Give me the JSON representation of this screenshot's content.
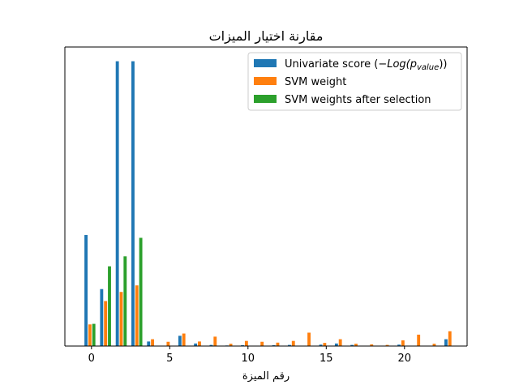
{
  "chart_data": {
    "type": "bar",
    "title": "مقارنة اختيار الميزات",
    "xlabel": "رقم الميزة",
    "ylabel": "",
    "xlim": [
      -1.7,
      24.0
    ],
    "ylim": [
      0,
      1.05
    ],
    "xticks": [
      0,
      5,
      10,
      15,
      20
    ],
    "xtick_labels": [
      "0",
      "5",
      "10",
      "15",
      "20"
    ],
    "show_y_ticks": false,
    "grid": false,
    "legend_placement": "top-right",
    "x": [
      0,
      1,
      2,
      3,
      4,
      5,
      6,
      7,
      8,
      9,
      10,
      11,
      12,
      13,
      14,
      15,
      16,
      17,
      18,
      19,
      20,
      21,
      22,
      23
    ],
    "series": [
      {
        "name": "Univariate score (−Log(p_value))",
        "legend_main": "Univariate score (",
        "legend_math": "−Log(p",
        "legend_sub": "value",
        "legend_tail": "))",
        "color": "#1f77b4",
        "offset": -0.45,
        "values": [
          0.39,
          0.2,
          1.0,
          1.0,
          0.016,
          0.0,
          0.036,
          0.009,
          0.004,
          0.002,
          0.003,
          0.0,
          0.003,
          0.004,
          0.0,
          0.005,
          0.009,
          0.004,
          0.0,
          0.0,
          0.005,
          0.0,
          0.0,
          0.024
        ]
      },
      {
        "name": "SVM weight",
        "color": "#ff7f0e",
        "offset": -0.2,
        "values": [
          0.076,
          0.158,
          0.19,
          0.213,
          0.024,
          0.015,
          0.044,
          0.016,
          0.033,
          0.008,
          0.018,
          0.015,
          0.012,
          0.018,
          0.047,
          0.011,
          0.024,
          0.008,
          0.006,
          0.004,
          0.02,
          0.04,
          0.008,
          0.052
        ]
      },
      {
        "name": "SVM weights after selection",
        "color": "#2ca02c",
        "offset": 0.05,
        "values": [
          0.078,
          0.28,
          0.315,
          0.38,
          0,
          0,
          0,
          0,
          0,
          0,
          0,
          0,
          0,
          0,
          0,
          0,
          0,
          0,
          0,
          0,
          0,
          0,
          0,
          0
        ]
      }
    ]
  }
}
